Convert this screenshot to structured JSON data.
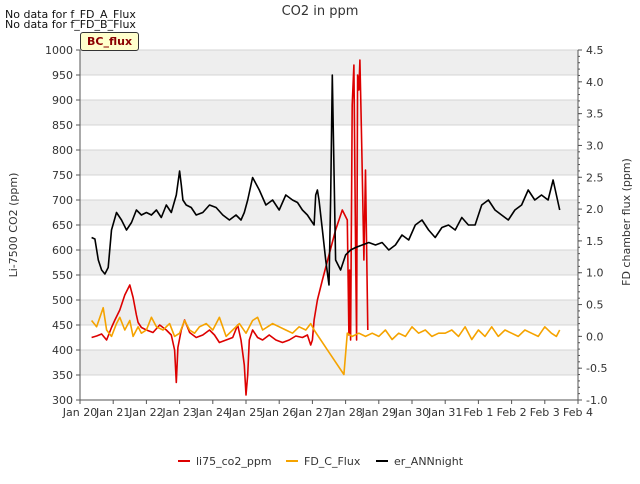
{
  "notes": [
    "No data for f_FD_A_Flux",
    "No data for f_FD_B_Flux"
  ],
  "badge": "BC_flux",
  "chart_data": {
    "type": "line",
    "title": "CO2 in ppm",
    "ylabel": "Li-7500 CO2 (ppm)",
    "y2label": "FD chamber flux (ppm)",
    "ylim": [
      300,
      1000
    ],
    "y2lim": [
      -1.0,
      4.5
    ],
    "xlim": [
      0,
      15
    ],
    "yticks": [
      300,
      350,
      400,
      450,
      500,
      550,
      600,
      650,
      700,
      750,
      800,
      850,
      900,
      950,
      1000
    ],
    "y2ticks": [
      -1.0,
      -0.5,
      0.0,
      0.5,
      1.0,
      1.5,
      2.0,
      2.5,
      3.0,
      3.5,
      4.0,
      4.5
    ],
    "xticklabels": [
      "Jan 20",
      "Jan 21",
      "Jan 22",
      "Jan 23",
      "Jan 24",
      "Jan 25",
      "Jan 26",
      "Jan 27",
      "Jan 28",
      "Jan 29",
      "Jan 30",
      "Jan 31",
      "Feb 1",
      "Feb 2",
      "Feb 3",
      "Feb 4"
    ],
    "series": [
      {
        "name": "li75_co2_ppm",
        "axis": "left",
        "color": "#dd0000",
        "x": [
          0.35,
          0.5,
          0.65,
          0.8,
          0.95,
          1.05,
          1.2,
          1.35,
          1.5,
          1.6,
          1.7,
          1.75,
          1.85,
          2.0,
          2.2,
          2.4,
          2.6,
          2.75,
          2.85,
          2.9,
          2.95,
          3.05,
          3.15,
          3.3,
          3.5,
          3.7,
          3.9,
          4.05,
          4.2,
          4.4,
          4.6,
          4.75,
          4.85,
          4.95,
          5.0,
          5.05,
          5.1,
          5.2,
          5.35,
          5.5,
          5.7,
          5.9,
          6.1,
          6.3,
          6.5,
          6.7,
          6.85,
          6.95,
          7.0,
          7.05,
          7.15,
          7.3,
          7.5,
          7.7,
          7.9,
          8.05,
          8.1,
          8.12,
          8.15,
          8.2,
          8.25,
          8.3,
          8.33,
          8.36,
          8.4,
          8.43,
          8.47,
          8.5,
          8.55,
          8.6,
          8.67
        ],
        "y": [
          425,
          428,
          432,
          420,
          445,
          460,
          480,
          510,
          530,
          505,
          470,
          455,
          445,
          440,
          435,
          450,
          440,
          430,
          400,
          335,
          405,
          440,
          460,
          435,
          425,
          430,
          440,
          430,
          415,
          420,
          425,
          450,
          420,
          370,
          310,
          350,
          420,
          440,
          425,
          420,
          430,
          420,
          415,
          420,
          428,
          425,
          430,
          410,
          420,
          460,
          500,
          540,
          590,
          640,
          680,
          660,
          430,
          560,
          420,
          890,
          970,
          600,
          420,
          950,
          920,
          980,
          860,
          760,
          580,
          760,
          440
        ]
      },
      {
        "name": "FD_C_Flux",
        "axis": "right",
        "color": "#f5a300",
        "x": [
          0.35,
          0.5,
          0.7,
          0.8,
          0.95,
          1.1,
          1.2,
          1.35,
          1.5,
          1.6,
          1.75,
          1.85,
          2.0,
          2.15,
          2.3,
          2.5,
          2.7,
          2.85,
          3.0,
          3.15,
          3.3,
          3.45,
          3.6,
          3.8,
          4.0,
          4.2,
          4.4,
          4.6,
          4.8,
          5.0,
          5.2,
          5.35,
          5.5,
          5.65,
          5.8,
          6.0,
          6.2,
          6.4,
          6.6,
          6.8,
          6.95,
          7.05,
          7.5,
          7.95,
          8.05,
          8.2,
          8.4,
          8.6,
          8.8,
          9.0,
          9.2,
          9.4,
          9.6,
          9.8,
          10.0,
          10.2,
          10.4,
          10.6,
          10.8,
          11.0,
          11.2,
          11.4,
          11.6,
          11.8,
          12.0,
          12.2,
          12.4,
          12.6,
          12.8,
          13.0,
          13.2,
          13.4,
          13.6,
          13.8,
          14.0,
          14.2,
          14.35,
          14.45
        ],
        "y": [
          0.25,
          0.15,
          0.45,
          0.1,
          0.0,
          0.2,
          0.3,
          0.1,
          0.25,
          0.0,
          0.15,
          0.05,
          0.1,
          0.3,
          0.15,
          0.1,
          0.2,
          0.0,
          0.05,
          0.25,
          0.1,
          0.05,
          0.15,
          0.2,
          0.1,
          0.3,
          0.0,
          0.1,
          0.2,
          0.05,
          0.25,
          0.3,
          0.1,
          0.15,
          0.2,
          0.15,
          0.1,
          0.05,
          0.15,
          0.1,
          0.2,
          0.1,
          -0.25,
          -0.6,
          0.05,
          0.0,
          0.05,
          0.0,
          0.05,
          0.0,
          0.1,
          -0.05,
          0.05,
          0.0,
          0.15,
          0.05,
          0.1,
          0.0,
          0.05,
          0.05,
          0.1,
          0.0,
          0.15,
          -0.05,
          0.1,
          0.0,
          0.15,
          0.0,
          0.1,
          0.05,
          0.0,
          0.1,
          0.05,
          0.0,
          0.15,
          0.05,
          0.0,
          0.1
        ]
      },
      {
        "name": "er_ANNnight",
        "axis": "left",
        "color": "#000000",
        "x": [
          0.35,
          0.45,
          0.55,
          0.65,
          0.75,
          0.85,
          0.95,
          1.1,
          1.25,
          1.4,
          1.55,
          1.7,
          1.85,
          2.0,
          2.15,
          2.3,
          2.45,
          2.6,
          2.75,
          2.9,
          3.0,
          3.05,
          3.1,
          3.2,
          3.35,
          3.5,
          3.7,
          3.9,
          4.1,
          4.3,
          4.5,
          4.7,
          4.85,
          4.95,
          5.05,
          5.2,
          5.4,
          5.6,
          5.8,
          6.0,
          6.2,
          6.4,
          6.55,
          6.7,
          6.85,
          6.95,
          7.05,
          7.1,
          7.15,
          7.2,
          7.3,
          7.4,
          7.5,
          7.55,
          7.6,
          7.7,
          7.85,
          8.0,
          8.15,
          8.3,
          8.5,
          8.7,
          8.9,
          9.1,
          9.3,
          9.5,
          9.7,
          9.9,
          10.1,
          10.3,
          10.5,
          10.7,
          10.9,
          11.1,
          11.3,
          11.5,
          11.7,
          11.9,
          12.1,
          12.3,
          12.5,
          12.7,
          12.9,
          13.1,
          13.3,
          13.5,
          13.7,
          13.9,
          14.1,
          14.25,
          14.35,
          14.45
        ],
        "y": [
          625,
          622,
          580,
          560,
          552,
          565,
          640,
          675,
          660,
          640,
          655,
          680,
          670,
          675,
          670,
          680,
          665,
          690,
          675,
          710,
          758,
          730,
          700,
          690,
          685,
          670,
          675,
          690,
          685,
          670,
          660,
          670,
          660,
          675,
          700,
          745,
          720,
          690,
          700,
          680,
          710,
          700,
          695,
          680,
          670,
          660,
          650,
          710,
          720,
          700,
          640,
          580,
          530,
          710,
          950,
          580,
          560,
          590,
          600,
          605,
          610,
          615,
          610,
          615,
          600,
          610,
          630,
          620,
          650,
          660,
          640,
          625,
          645,
          650,
          640,
          665,
          650,
          650,
          690,
          700,
          680,
          670,
          660,
          680,
          690,
          720,
          700,
          710,
          700,
          740,
          710,
          680
        ]
      }
    ]
  }
}
